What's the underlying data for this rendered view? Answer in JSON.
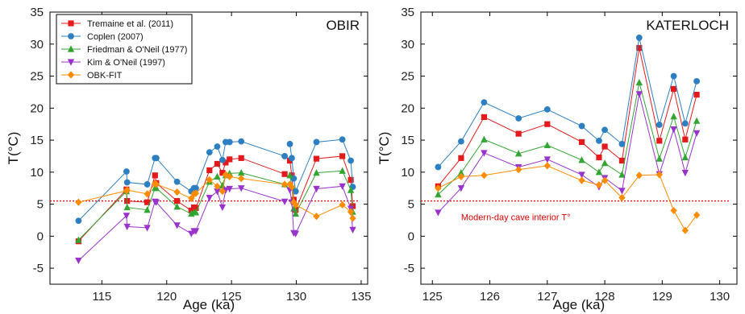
{
  "colors": {
    "Tremaine et al. (2011)": "#e31a1c",
    "Coplen (2007)": "#2c7fc1",
    "Friedman & O'Neil (1977)": "#33a532",
    "Kim & O'Neil (1997)": "#9933cc",
    "OBK-FIT": "#ff8c00",
    "reference_line": "#dd0000"
  },
  "markers": {
    "Tremaine et al. (2011)": "square",
    "Coplen (2007)": "circle",
    "Friedman & O'Neil (1977)": "triangle-up",
    "Kim & O'Neil (1997)": "triangle-down",
    "OBK-FIT": "diamond"
  },
  "chart_data": [
    {
      "type": "line",
      "title": "OBIR",
      "xlabel": "Age (ka)",
      "ylabel": "T(°C)",
      "xlim": [
        111,
        135.5
      ],
      "ylim": [
        -7.5,
        35
      ],
      "xticks": [
        115,
        120,
        125,
        130,
        135
      ],
      "yticks": [
        -5,
        0,
        5,
        10,
        15,
        20,
        25,
        30,
        35
      ],
      "grid": false,
      "legend": "top-left",
      "reference_line": {
        "y": 5.5,
        "style": "dotted",
        "label": ""
      },
      "segments": [
        [
          0,
          16
        ],
        [
          17,
          24
        ]
      ],
      "x": [
        113.2,
        116.9,
        116.95,
        118.5,
        119.1,
        119.2,
        120.8,
        121.9,
        122.1,
        122.25,
        123.3,
        123.9,
        124.3,
        124.55,
        124.85,
        125.75,
        129.1,
        129.5,
        129.65,
        129.8,
        129.95,
        131.55,
        133.55,
        134.2,
        134.35
      ],
      "series": [
        {
          "name": "Tremaine et al. (2011)",
          "values": [
            -0.8,
            7.3,
            5.5,
            5.3,
            9.5,
            8.3,
            5.5,
            4.0,
            4.5,
            4.4,
            10.3,
            11.3,
            9.9,
            11.5,
            12.0,
            12.2,
            9.7,
            11.8,
            9.5,
            5.7,
            4.1,
            12.1,
            12.5,
            8.8,
            4.7
          ]
        },
        {
          "name": "Coplen (2007)",
          "values": [
            2.4,
            10.1,
            8.4,
            8.1,
            12.2,
            12.2,
            8.5,
            7.0,
            7.5,
            7.5,
            13.1,
            14.0,
            11.9,
            14.7,
            14.7,
            14.8,
            12.5,
            14.4,
            12.2,
            9.0,
            7.0,
            14.7,
            15.1,
            11.8,
            7.7
          ]
        },
        {
          "name": "Friedman & O'Neil (1977)",
          "values": [
            -0.6,
            7.0,
            4.5,
            4.1,
            7.5,
            7.5,
            4.6,
            3.5,
            3.7,
            3.7,
            8.5,
            9.3,
            7.9,
            9.5,
            9.8,
            9.9,
            8.1,
            9.5,
            7.8,
            4.3,
            3.5,
            9.9,
            10.2,
            7.2,
            3.8
          ]
        },
        {
          "name": "Kim & O'Neil (1997)",
          "values": [
            -3.8,
            3.2,
            1.5,
            1.3,
            5.4,
            5.3,
            1.7,
            0.4,
            0.8,
            0.8,
            6.0,
            7.0,
            4.5,
            7.2,
            7.4,
            7.5,
            5.4,
            7.2,
            5.3,
            0.5,
            0.4,
            7.4,
            7.8,
            4.3,
            1.0
          ]
        },
        {
          "name": "OBK-FIT",
          "values": [
            5.3,
            7.1,
            7.2,
            6.6,
            8.2,
            8.1,
            6.9,
            5.9,
            6.6,
            6.7,
            8.8,
            7.8,
            7.0,
            9.6,
            9.3,
            9.0,
            8.1,
            8.1,
            7.7,
            5.3,
            4.9,
            3.1,
            4.9,
            3.8,
            2.8
          ]
        }
      ]
    },
    {
      "type": "line",
      "title": "KATERLOCH",
      "xlabel": "Age (ka)",
      "ylabel": "T(°C)",
      "xlim": [
        124.8,
        130.3
      ],
      "ylim": [
        -7.5,
        35
      ],
      "xticks": [
        125,
        126,
        127,
        128,
        129,
        130
      ],
      "yticks": [
        -5,
        0,
        5,
        10,
        15,
        20,
        25,
        30,
        35
      ],
      "grid": false,
      "legend": "none",
      "reference_line": {
        "y": 5.5,
        "style": "dotted",
        "label": "Modern-day cave interior T°"
      },
      "segments": [
        [
          0,
          16
        ]
      ],
      "x": [
        125.1,
        125.5,
        125.9,
        126.5,
        127.0,
        127.6,
        127.9,
        128.0,
        128.3,
        128.6,
        128.95,
        129.2,
        129.4,
        129.6
      ],
      "series": [
        {
          "name": "Tremaine et al. (2011)",
          "values": [
            7.8,
            12.2,
            18.6,
            16.0,
            17.5,
            14.7,
            12.3,
            14.0,
            11.8,
            29.4,
            14.9,
            23.0,
            15.1,
            22.1
          ]
        },
        {
          "name": "Coplen (2007)",
          "values": [
            10.8,
            14.8,
            20.9,
            18.4,
            19.8,
            17.2,
            14.9,
            16.6,
            14.4,
            31.0,
            17.4,
            25.0,
            17.6,
            24.2
          ]
        },
        {
          "name": "Friedman & O'Neil (1977)",
          "values": [
            6.5,
            9.9,
            15.1,
            12.9,
            14.2,
            11.9,
            10.0,
            11.4,
            9.6,
            24.0,
            12.1,
            18.7,
            12.3,
            18.0
          ]
        },
        {
          "name": "Kim & O'Neil (1997)",
          "values": [
            3.7,
            7.5,
            13.0,
            10.8,
            12.0,
            9.6,
            7.7,
            9.1,
            7.1,
            22.2,
            9.7,
            16.7,
            9.9,
            16.1
          ]
        },
        {
          "name": "OBK-FIT",
          "values": [
            7.5,
            9.3,
            9.5,
            10.4,
            11.0,
            8.7,
            8.0,
            8.7,
            6.0,
            9.5,
            9.6,
            4.0,
            0.9,
            3.3
          ]
        }
      ]
    }
  ]
}
